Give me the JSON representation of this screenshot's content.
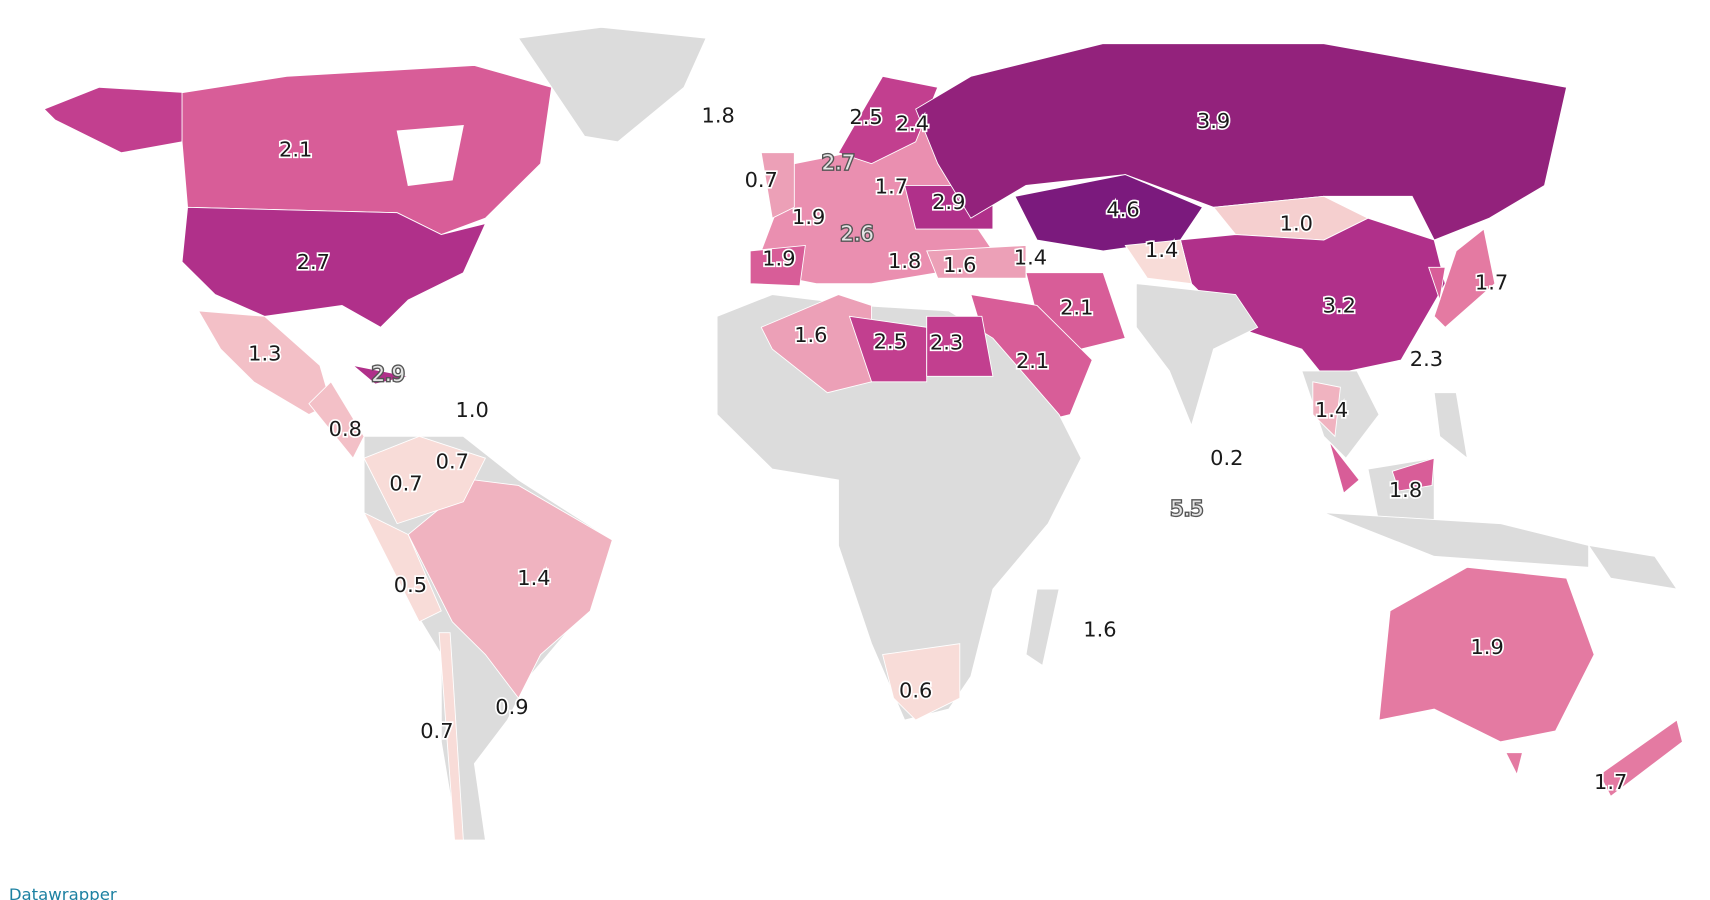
{
  "map": {
    "labels": [
      "1.8",
      "2.5",
      "2.4",
      "3.9",
      "2.1",
      "2.7",
      "0.7",
      "1.7",
      "2.9",
      "4.6",
      "1.9",
      "1.0",
      "2.6",
      "2.7",
      "1.9",
      "1.8",
      "1.6",
      "1.4",
      "1.4",
      "1.7",
      "2.1",
      "3.2",
      "1.3",
      "1.6",
      "2.5",
      "2.3",
      "2.1",
      "2.3",
      "2.9",
      "1.0",
      "1.4",
      "0.8",
      "0.7",
      "0.7",
      "0.2",
      "1.8",
      "5.5",
      "0.5",
      "1.4",
      "1.6",
      "1.9",
      "0.6",
      "0.9",
      "0.7",
      "1.7"
    ],
    "footer": "Datawrapper"
  }
}
